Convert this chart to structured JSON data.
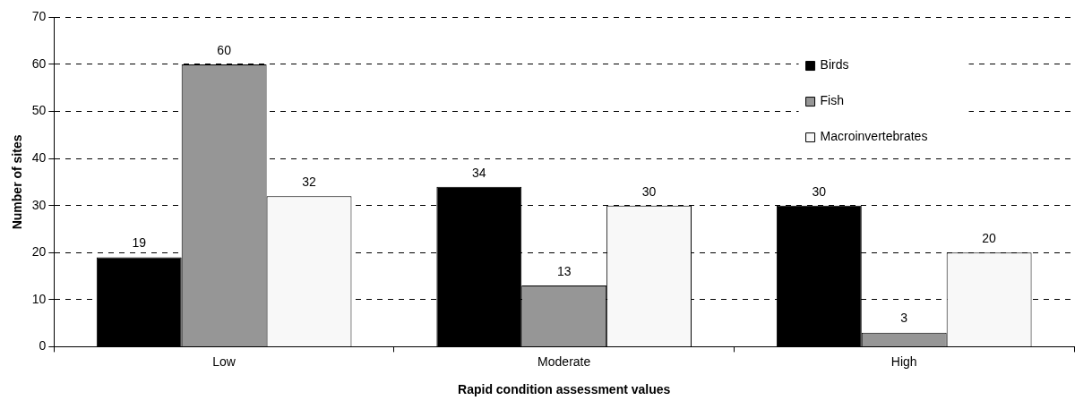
{
  "chart_data": {
    "type": "bar",
    "xlabel": "Rapid condition assessment values",
    "ylabel": "Number of sites",
    "categories": [
      "Low",
      "Moderate",
      "High"
    ],
    "series": [
      {
        "name": "Birds",
        "color": "#000000",
        "values": [
          19,
          34,
          30
        ]
      },
      {
        "name": "Fish",
        "color": "#969696",
        "values": [
          60,
          13,
          3
        ]
      },
      {
        "name": "Macroinvertebrates",
        "color": "#f8f8f8",
        "values": [
          32,
          30,
          20
        ]
      }
    ],
    "ylim": [
      0,
      70
    ],
    "yticks": [
      0,
      10,
      20,
      30,
      40,
      50,
      60,
      70
    ],
    "grid": "y",
    "legend": "top right",
    "data_labels": true
  }
}
